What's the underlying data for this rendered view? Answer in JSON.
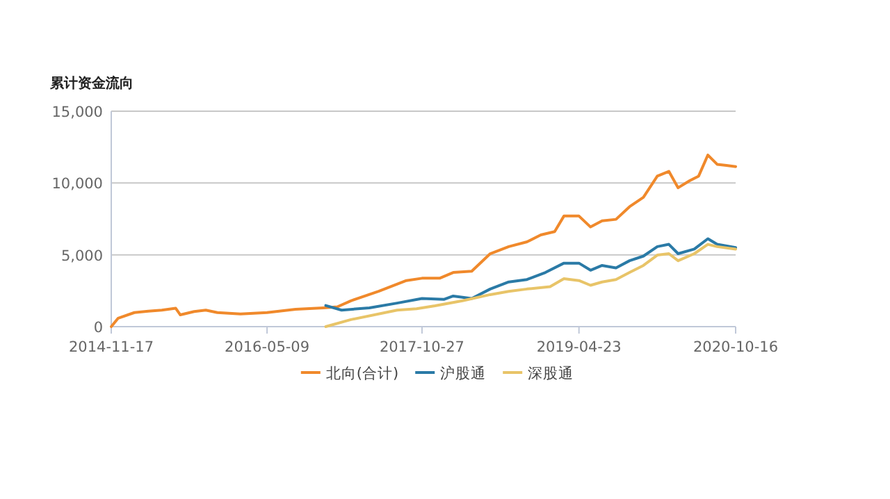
{
  "chart_data": {
    "type": "line",
    "title": "累计资金流向",
    "legend": "bottom",
    "grid": "y",
    "xlim": [
      "2014-11-17",
      "2020-10-16"
    ],
    "xticks": [
      "2014-11-17",
      "2016-05-09",
      "2017-10-27",
      "2019-04-23",
      "2020-10-16"
    ],
    "ylim": [
      0,
      15000
    ],
    "yticks": [
      {
        "value": 0,
        "label": "0"
      },
      {
        "value": 5000,
        "label": "5,000"
      },
      {
        "value": 10000,
        "label": "10,000"
      },
      {
        "value": 15000,
        "label": "15,000"
      }
    ],
    "series": [
      {
        "name": "北向(合计)",
        "color": "#f0892b",
        "x": [
          "2014-11-17",
          "2014-12-11",
          "2015-02-05",
          "2015-03-25",
          "2015-05-11",
          "2015-06-28",
          "2015-07-14",
          "2015-08-31",
          "2015-10-10",
          "2015-11-19",
          "2016-02-07",
          "2016-05-09",
          "2016-08-16",
          "2016-11-20",
          "2017-01-07",
          "2017-02-23",
          "2017-05-30",
          "2017-09-03",
          "2017-10-27",
          "2017-12-27",
          "2018-02-12",
          "2018-04-17",
          "2018-06-20",
          "2018-08-23",
          "2018-10-25",
          "2018-12-12",
          "2019-01-29",
          "2019-03-02",
          "2019-04-23",
          "2019-06-02",
          "2019-07-12",
          "2019-08-29",
          "2019-10-15",
          "2019-12-02",
          "2020-01-19",
          "2020-02-28",
          "2020-03-31",
          "2020-05-10",
          "2020-06-10",
          "2020-07-12",
          "2020-08-13",
          "2020-09-14",
          "2020-10-16"
        ],
        "values": [
          0,
          590,
          980,
          1080,
          1150,
          1280,
          820,
          1050,
          1150,
          980,
          880,
          980,
          1210,
          1310,
          1380,
          1800,
          2460,
          3210,
          3370,
          3370,
          3770,
          3860,
          5080,
          5570,
          5900,
          6390,
          6620,
          7700,
          7700,
          6940,
          7370,
          7470,
          8350,
          9010,
          10480,
          10810,
          9670,
          10160,
          10480,
          11950,
          11300,
          11230,
          11140
        ]
      },
      {
        "name": "沪股通",
        "color": "#2a7aa6",
        "x": [
          "2016-11-28",
          "2017-01-22",
          "2017-04-28",
          "2017-08-02",
          "2017-10-27",
          "2018-01-12",
          "2018-02-12",
          "2018-04-17",
          "2018-06-20",
          "2018-08-23",
          "2018-10-25",
          "2018-12-28",
          "2019-03-02",
          "2019-04-23",
          "2019-06-02",
          "2019-07-12",
          "2019-08-29",
          "2019-10-15",
          "2019-12-02",
          "2020-01-19",
          "2020-02-28",
          "2020-03-31",
          "2020-05-26",
          "2020-07-12",
          "2020-08-13",
          "2020-10-16"
        ],
        "values": [
          1470,
          1150,
          1310,
          1640,
          1960,
          1900,
          2130,
          1960,
          2620,
          3110,
          3280,
          3770,
          4420,
          4420,
          3930,
          4260,
          4090,
          4590,
          4910,
          5570,
          5730,
          5080,
          5400,
          6120,
          5730,
          5500
        ]
      },
      {
        "name": "深股通",
        "color": "#e8c468",
        "x": [
          "2016-11-28",
          "2017-02-23",
          "2017-08-02",
          "2017-10-08",
          "2017-12-11",
          "2018-03-16",
          "2018-06-20",
          "2018-08-23",
          "2018-10-25",
          "2019-01-13",
          "2019-03-02",
          "2019-04-23",
          "2019-06-02",
          "2019-07-12",
          "2019-08-29",
          "2019-10-15",
          "2019-12-02",
          "2020-01-19",
          "2020-02-28",
          "2020-03-31",
          "2020-05-26",
          "2020-07-12",
          "2020-08-13",
          "2020-10-16"
        ],
        "values": [
          0,
          490,
          1150,
          1250,
          1450,
          1800,
          2230,
          2460,
          2620,
          2780,
          3340,
          3210,
          2880,
          3110,
          3280,
          3770,
          4260,
          4980,
          5080,
          4590,
          5080,
          5730,
          5570,
          5400
        ]
      }
    ]
  }
}
